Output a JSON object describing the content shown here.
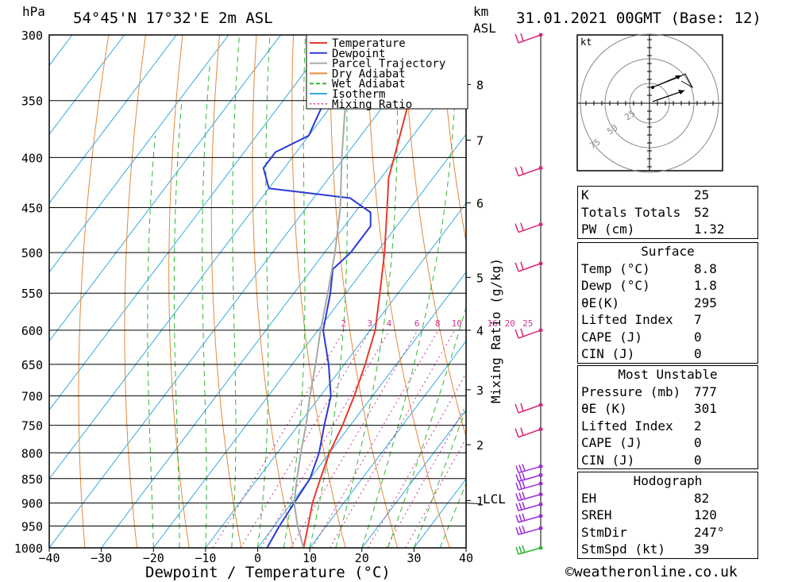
{
  "header": {
    "unit_hpa": "hPa",
    "location": "54°45'N  17°32'E  2m  ASL",
    "unit_km": "km",
    "unit_asl": "ASL",
    "datetime": "31.01.2021  00GMT  (Base: 12)"
  },
  "chart_data": {
    "type": "line",
    "title": "54°45'N  17°32'E  2m  ASL",
    "xlabel": "Dewpoint / Temperature (°C)",
    "ylabel": "hPa",
    "xlim": [
      -40,
      40
    ],
    "ylim": [
      1000,
      300
    ],
    "y_scale": "log",
    "x_ticks": [
      "−40",
      "−30",
      "−20",
      "−10",
      "0",
      "10",
      "20",
      "30",
      "40"
    ],
    "pressure_ticks": [
      300,
      350,
      400,
      450,
      500,
      550,
      600,
      650,
      700,
      750,
      800,
      850,
      900,
      950,
      1000
    ],
    "km_ticks": [
      {
        "label": "8",
        "p": 337
      },
      {
        "label": "7",
        "p": 384
      },
      {
        "label": "6",
        "p": 445
      },
      {
        "label": "5",
        "p": 530
      },
      {
        "label": "4",
        "p": 600
      },
      {
        "label": "3",
        "p": 690
      },
      {
        "label": "2",
        "p": 785
      },
      {
        "label": "1",
        "p": 895
      }
    ],
    "lcl_label": "LCL",
    "lcl_pressure": 900,
    "mixing_ratio_axis_label": "Mixing Ratio (g/kg)",
    "mixing_ratio_labels": [
      "2",
      "3",
      "4",
      "6",
      "8",
      "10",
      "16",
      "20",
      "25"
    ],
    "legend": [
      {
        "name": "Temperature",
        "color": "#e8392c"
      },
      {
        "name": "Dewpoint",
        "color": "#2a3ad8"
      },
      {
        "name": "Parcel Trajectory",
        "color": "#a8a8a8"
      },
      {
        "name": "Dry Adiabat",
        "color": "#e38a3c"
      },
      {
        "name": "Wet Adiabat",
        "color": "#34b534"
      },
      {
        "name": "Isotherm",
        "color": "#36a9df"
      },
      {
        "name": "Mixing Ratio",
        "color": "#d0368e"
      }
    ],
    "series": [
      {
        "name": "Temperature",
        "color": "#e8392c",
        "points": [
          [
            1000,
            8.8
          ],
          [
            950,
            6.5
          ],
          [
            900,
            4.0
          ],
          [
            850,
            2.0
          ],
          [
            800,
            0.0
          ],
          [
            750,
            -1.5
          ],
          [
            700,
            -3.5
          ],
          [
            650,
            -6.0
          ],
          [
            600,
            -9.0
          ],
          [
            550,
            -13.5
          ],
          [
            500,
            -18.5
          ],
          [
            450,
            -24.5
          ],
          [
            420,
            -28.5
          ],
          [
            380,
            -32.5
          ],
          [
            340,
            -37.0
          ],
          [
            315,
            -41.0
          ],
          [
            300,
            -42.5
          ]
        ]
      },
      {
        "name": "Dewpoint",
        "color": "#2a3ad8",
        "points": [
          [
            1000,
            1.8
          ],
          [
            950,
            1.0
          ],
          [
            900,
            0.5
          ],
          [
            850,
            0.0
          ],
          [
            800,
            -2.0
          ],
          [
            750,
            -5.0
          ],
          [
            700,
            -8.0
          ],
          [
            650,
            -13.0
          ],
          [
            600,
            -19.0
          ],
          [
            550,
            -23.0
          ],
          [
            520,
            -26.0
          ],
          [
            500,
            -25.0
          ],
          [
            470,
            -25.0
          ],
          [
            455,
            -27.0
          ],
          [
            440,
            -33.0
          ],
          [
            430,
            -50.0
          ],
          [
            410,
            -54.0
          ],
          [
            395,
            -54.0
          ],
          [
            380,
            -50.0
          ],
          [
            365,
            -51.0
          ],
          [
            350,
            -52.0
          ],
          [
            330,
            -48.0
          ],
          [
            315,
            -43.5
          ],
          [
            300,
            -44.0
          ]
        ]
      },
      {
        "name": "Parcel Trajectory",
        "color": "#a8a8a8",
        "points": [
          [
            1000,
            8.8
          ],
          [
            950,
            4.5
          ],
          [
            900,
            0.5
          ],
          [
            850,
            -2.5
          ],
          [
            800,
            -5.5
          ],
          [
            750,
            -8.5
          ],
          [
            700,
            -12.0
          ],
          [
            650,
            -15.5
          ],
          [
            600,
            -19.5
          ],
          [
            550,
            -23.5
          ],
          [
            500,
            -28.0
          ],
          [
            450,
            -33.5
          ],
          [
            400,
            -40.5
          ],
          [
            350,
            -48.0
          ],
          [
            310,
            -55.0
          ]
        ]
      }
    ],
    "wind_profile": [
      1000,
      955,
      928,
      903,
      882,
      860,
      843,
      826,
      757,
      715,
      600,
      513,
      468,
      410,
      300
    ],
    "hodograph": {
      "label": "kt",
      "ring_labels": [
        "25",
        "50",
        "75"
      ]
    }
  },
  "indices": {
    "k_label": "K",
    "k_value": "25",
    "tt_label": "Totals Totals",
    "tt_value": "52",
    "pw_label": "PW (cm)",
    "pw_value": "1.32"
  },
  "surface": {
    "heading": "Surface",
    "temp_label": "Temp (°C)",
    "temp_value": "8.8",
    "dewp_label": "Dewp (°C)",
    "dewp_value": "1.8",
    "theta_label": "θE(K)",
    "theta_value": "295",
    "li_label": "Lifted Index",
    "li_value": "7",
    "cape_label": "CAPE (J)",
    "cape_value": "0",
    "cin_label": "CIN (J)",
    "cin_value": "0"
  },
  "most_unstable": {
    "heading": "Most Unstable",
    "pressure_label": "Pressure (mb)",
    "pressure_value": "777",
    "theta_label": "θE (K)",
    "theta_value": "301",
    "li_label": "Lifted Index",
    "li_value": "2",
    "cape_label": "CAPE (J)",
    "cape_value": "0",
    "cin_label": "CIN (J)",
    "cin_value": "0"
  },
  "hodograph_stats": {
    "heading": "Hodograph",
    "eh_label": "EH",
    "eh_value": "82",
    "sreh_label": "SREH",
    "sreh_value": "120",
    "stmdir_label": "StmDir",
    "stmdir_value": "247°",
    "stmspd_label": "StmSpd (kt)",
    "stmspd_value": "39"
  },
  "footer": {
    "copyright": "©weatheronline.co.uk"
  }
}
